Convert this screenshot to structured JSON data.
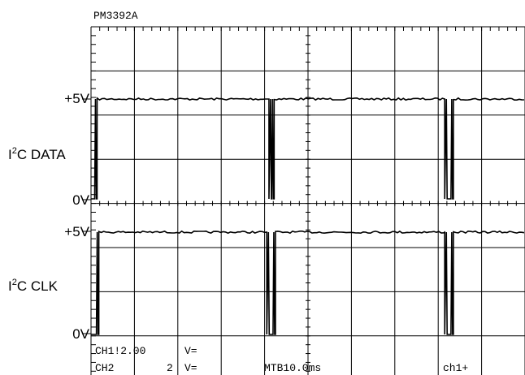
{
  "instrument": "PM3392A",
  "chart_data": {
    "type": "line",
    "title": "",
    "x_divisions": 10,
    "y_divisions": 8,
    "time_per_division": "10.0ms",
    "series": [
      {
        "name_prefix": "I",
        "name_superscript": "2",
        "name_suffix": "C DATA",
        "high_label": "+5V",
        "low_label": "0V",
        "low_pulses_div": [
          [
            0.0,
            0.14
          ],
          [
            4.1,
            4.22
          ],
          [
            8.15,
            8.35
          ]
        ]
      },
      {
        "name_prefix": "I",
        "name_superscript": "2",
        "name_suffix": "C CLK",
        "high_label": "+5V",
        "low_label": "0V",
        "low_pulses_div": [
          [
            0.0,
            0.18
          ],
          [
            4.05,
            4.25
          ],
          [
            8.15,
            8.35
          ]
        ]
      }
    ]
  },
  "status": {
    "line1": [
      "CH1!2.00",
      "V="
    ],
    "line2": [
      "CH2",
      "2",
      "V=",
      "MTB10.0ms",
      "ch1+"
    ]
  }
}
